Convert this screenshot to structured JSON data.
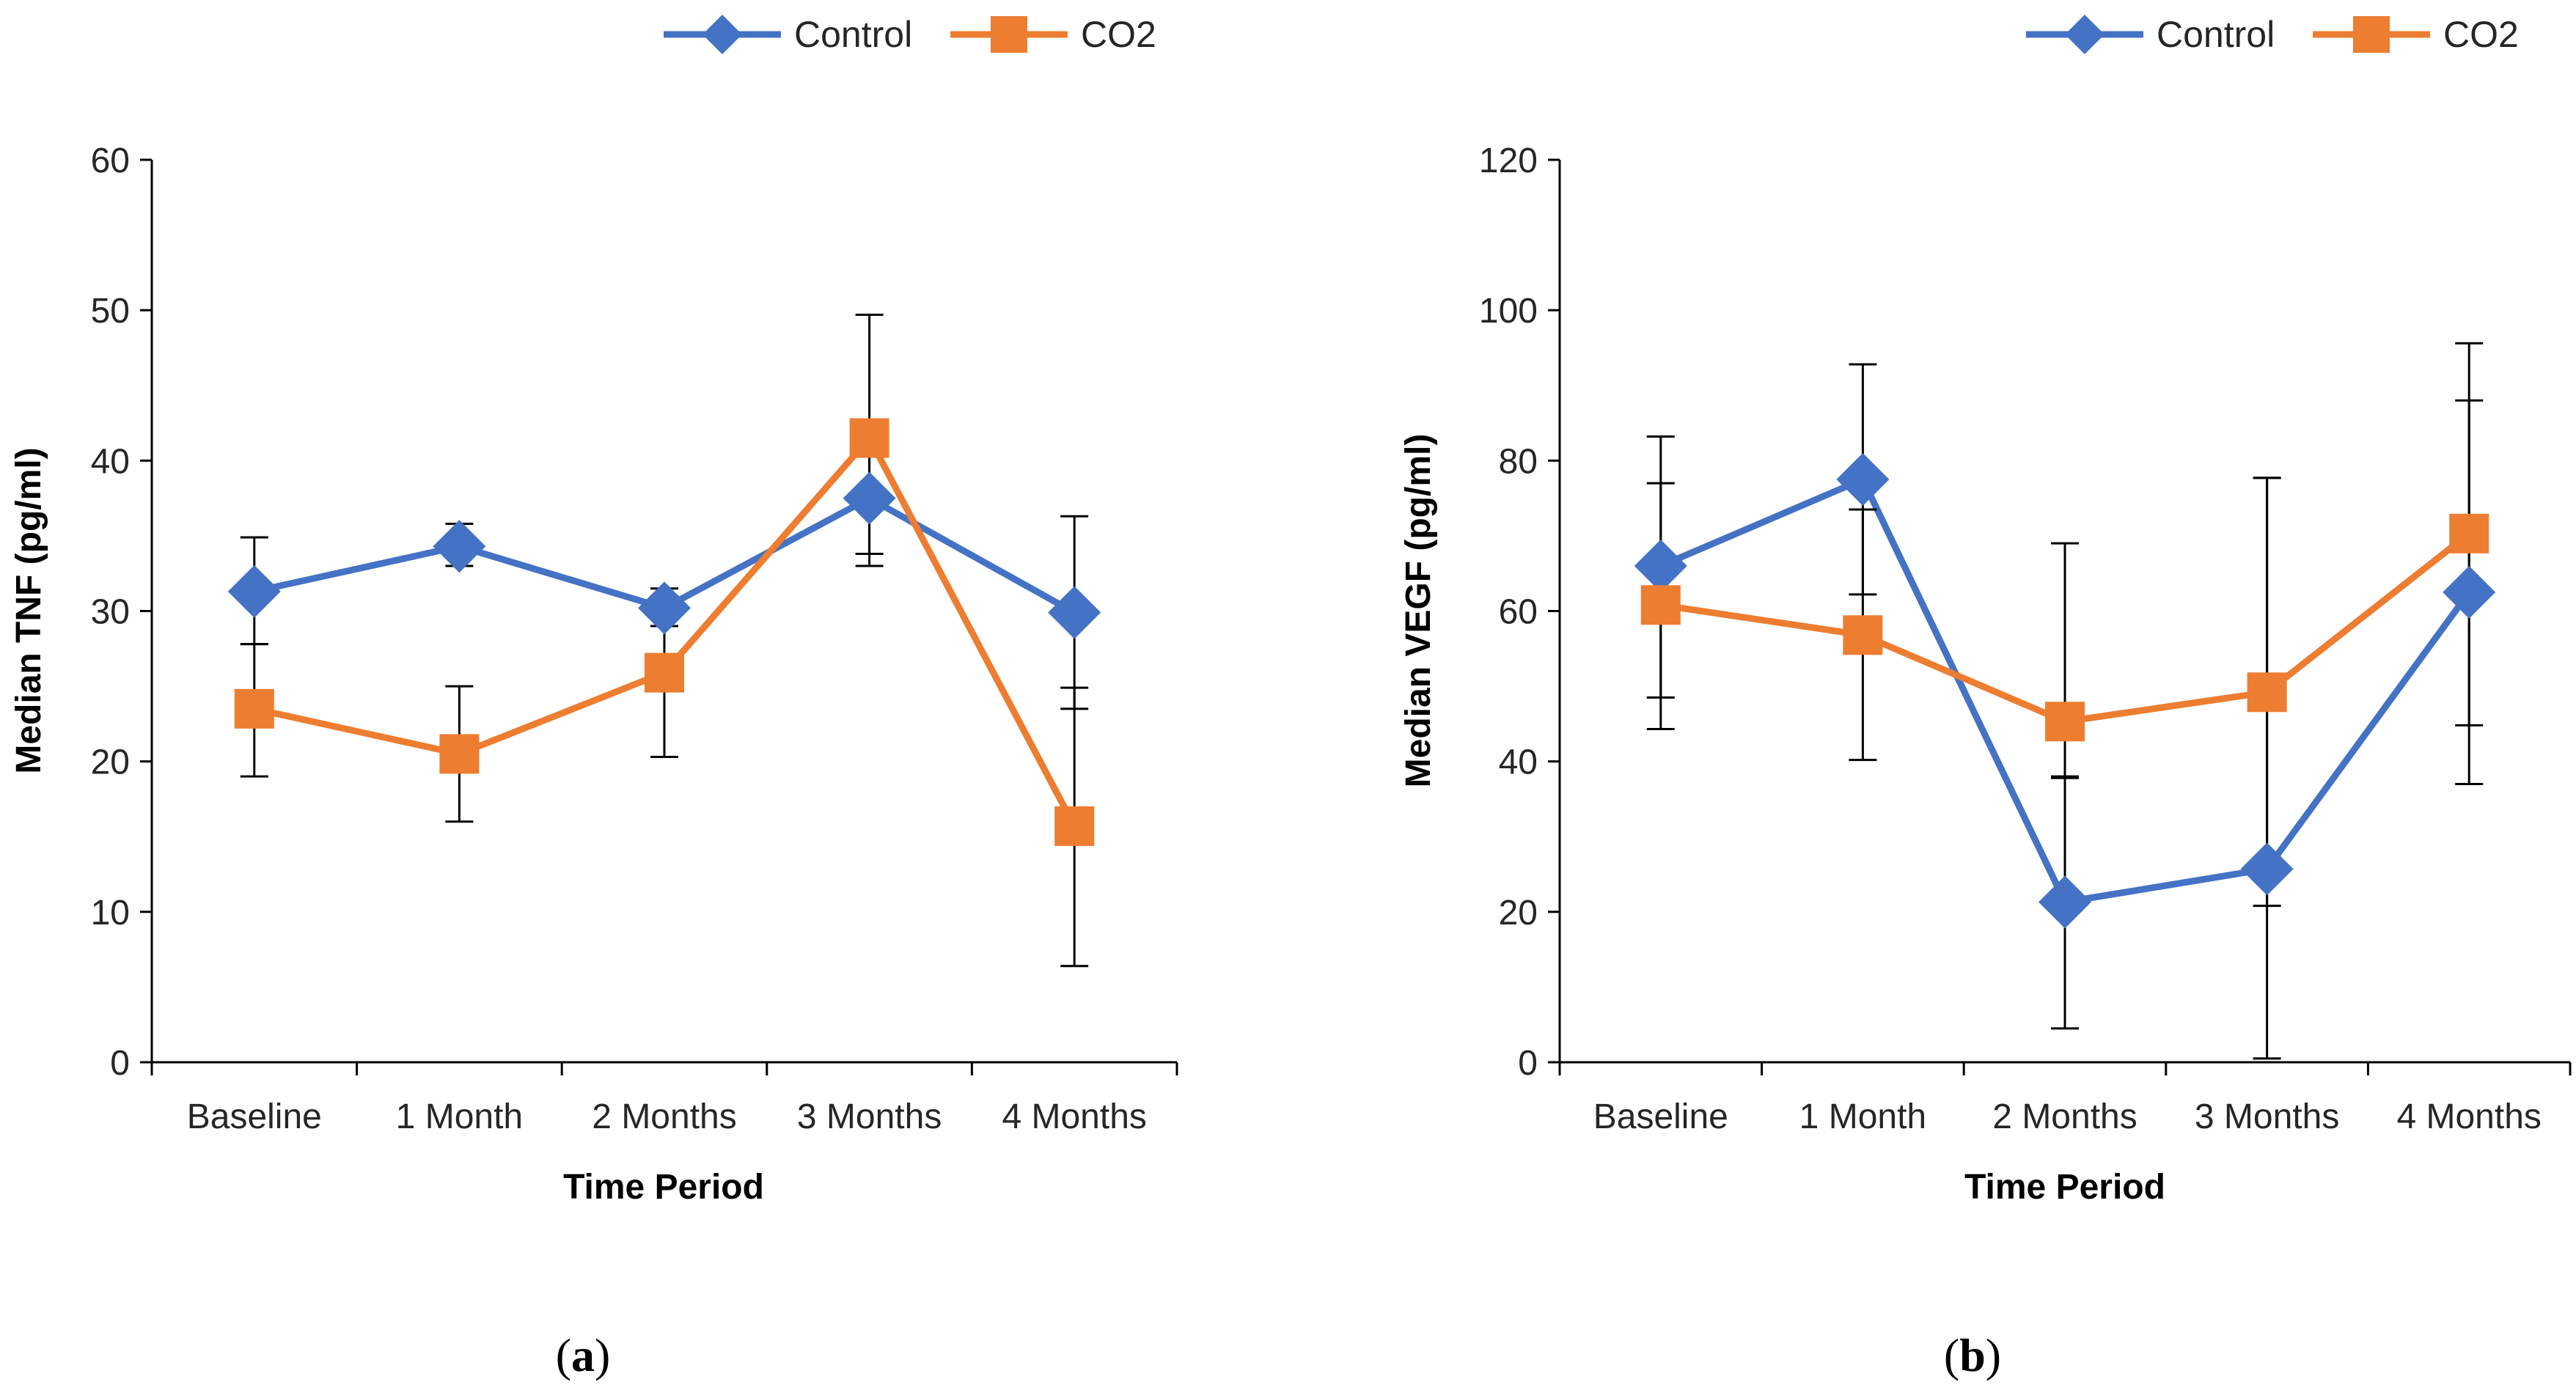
{
  "colors": {
    "control": "#4472C4",
    "co2": "#ED7D31",
    "axis": "#000000",
    "errorbar": "#000000"
  },
  "chart_data": [
    {
      "type": "line",
      "panel": "(a)",
      "panel_letter": "a",
      "xlabel": "Time Period",
      "ylabel": "Median TNF (pg/ml)",
      "ylim": [
        0,
        60
      ],
      "yticks": [
        0,
        10,
        20,
        30,
        40,
        50,
        60
      ],
      "categories": [
        "Baseline",
        "1 Month",
        "2 Months",
        "3 Months",
        "4 Months"
      ],
      "legend": [
        "Control",
        "CO2"
      ],
      "legend_position": "top-right",
      "series": [
        {
          "name": "Control",
          "marker": "diamond",
          "color": "#4472C4",
          "values": [
            31.3,
            34.3,
            30.2,
            37.5,
            29.9
          ],
          "err_low": [
            27.8,
            33.0,
            29.0,
            33.0,
            23.5
          ],
          "err_high": [
            34.9,
            35.8,
            31.5,
            41.0,
            36.3
          ]
        },
        {
          "name": "CO2",
          "marker": "square",
          "color": "#ED7D31",
          "values": [
            23.5,
            20.5,
            25.9,
            41.5,
            15.7
          ],
          "err_low": [
            19.0,
            16.0,
            20.3,
            33.8,
            6.4
          ],
          "err_high": [
            27.8,
            25.0,
            31.0,
            49.7,
            24.9
          ]
        }
      ]
    },
    {
      "type": "line",
      "panel": "(b)",
      "panel_letter": "b",
      "xlabel": "Time Period",
      "ylabel": "Median VEGF (pg/ml)",
      "ylim": [
        0,
        120
      ],
      "yticks": [
        0,
        20,
        40,
        60,
        80,
        100,
        120
      ],
      "categories": [
        "Baseline",
        "1 Month",
        "2 Months",
        "3 Months",
        "4 Months"
      ],
      "legend": [
        "Control",
        "CO2"
      ],
      "legend_position": "top-right",
      "series": [
        {
          "name": "Control",
          "marker": "diamond",
          "color": "#4472C4",
          "values": [
            66.0,
            77.5,
            21.3,
            25.7,
            62.5
          ],
          "err_low": [
            48.5,
            62.2,
            4.5,
            0.5,
            37.0
          ],
          "err_high": [
            83.2,
            92.8,
            37.8,
            77.7,
            88.0
          ]
        },
        {
          "name": "CO2",
          "marker": "square",
          "color": "#ED7D31",
          "values": [
            60.8,
            56.8,
            45.3,
            49.2,
            70.3
          ],
          "err_low": [
            44.3,
            40.2,
            38.0,
            20.8,
            44.8
          ],
          "err_high": [
            77.0,
            73.5,
            69.0,
            77.7,
            95.6
          ]
        }
      ]
    }
  ]
}
